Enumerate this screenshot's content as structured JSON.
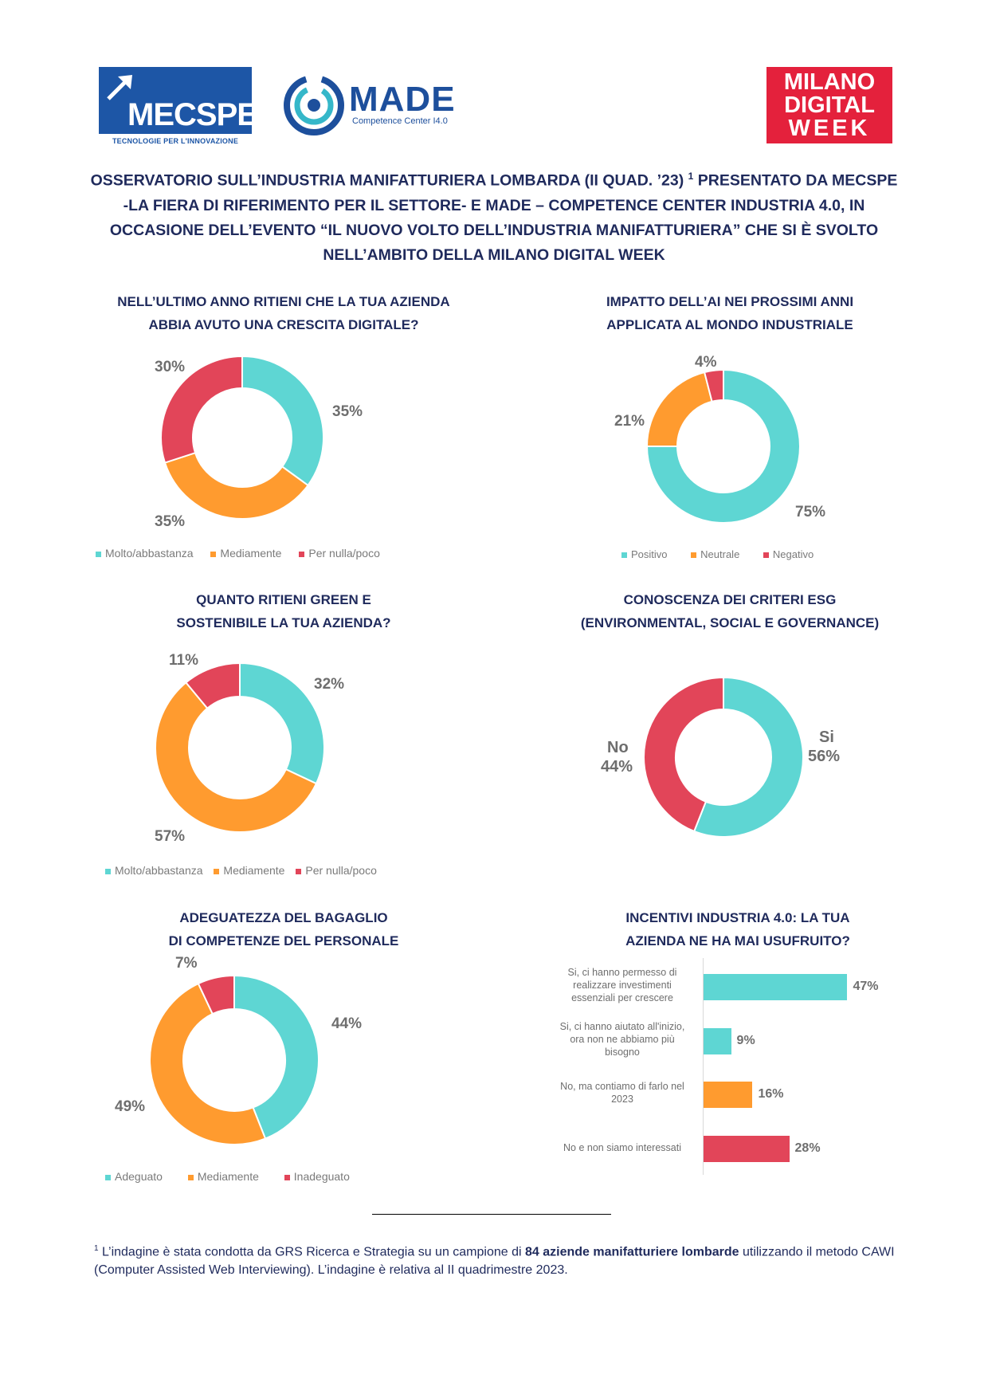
{
  "logos": {
    "mecspe": {
      "word": "MECSPE",
      "tagline": "TECNOLOGIE PER L'INNOVAZIONE"
    },
    "made": {
      "word": "MADE",
      "subtitle": "Competence Center I4.0"
    },
    "mdw": {
      "line1": "MILANO",
      "line2": "DIGITAL",
      "line3": "WEEK"
    }
  },
  "header": {
    "line1": "OSSERVATORIO SULL’INDUSTRIA MANIFATTURIERA LOMBARDA (II QUAD. ’23)",
    "sup": "1",
    "line1b": " PRESENTATO DA MECSPE",
    "line2": "-LA FIERA DI RIFERIMENTO PER IL SETTORE- E MADE – COMPETENCE CENTER INDUSTRIA 4.0, IN",
    "line3": "OCCASIONE DELL’EVENTO “IL NUOVO VOLTO DELL’INDUSTRIA MANIFATTURIERA” CHE SI È SVOLTO",
    "line4": "NELL’AMBITO DELLA MILANO DIGITAL WEEK"
  },
  "colors": {
    "teal": "#5ed6d3",
    "orange": "#ff9b2f",
    "red": "#e24559",
    "navy": "#1f2a5c",
    "grey": "#6e6e6e"
  },
  "chart_data": [
    {
      "type": "pie",
      "title_lines": [
        "NELL’ULTIMO ANNO RITIENI CHE LA TUA AZIENDA",
        "ABBIA AVUTO UNA CRESCITA DIGITALE?"
      ],
      "categories": [
        "Molto/abbastanza",
        "Mediamente",
        "Per nulla/poco"
      ],
      "values": [
        35,
        35,
        30
      ],
      "labels": [
        "35%",
        "35%",
        "30%"
      ],
      "legend": "bottom"
    },
    {
      "type": "pie",
      "title_lines": [
        "IMPATTO DELL’AI NEI PROSSIMI ANNI",
        "APPLICATA AL MONDO INDUSTRIALE"
      ],
      "categories": [
        "Positivo",
        "Neutrale",
        "Negativo"
      ],
      "values": [
        75,
        21,
        4
      ],
      "labels": [
        "75%",
        "21%",
        "4%"
      ],
      "legend": "bottom"
    },
    {
      "type": "pie",
      "title_lines": [
        "QUANTO RITIENI GREEN E",
        "SOSTENIBILE LA TUA AZIENDA?"
      ],
      "categories": [
        "Molto/abbastanza",
        "Mediamente",
        "Per nulla/poco"
      ],
      "values": [
        32,
        57,
        11
      ],
      "labels": [
        "32%",
        "57%",
        "11%"
      ],
      "legend": "bottom"
    },
    {
      "type": "pie",
      "title_lines": [
        "CONOSCENZA DEI CRITERI ESG",
        "(ENVIRONMENTAL, SOCIAL E GOVERNANCE)"
      ],
      "categories": [
        "Si",
        "No"
      ],
      "values": [
        56,
        44
      ],
      "labels": [
        "56%",
        "44%"
      ]
    },
    {
      "type": "pie",
      "title_lines": [
        "ADEGUATEZZA DEL BAGAGLIO",
        "DI COMPETENZE DEL PERSONALE"
      ],
      "categories": [
        "Adeguato",
        "Mediamente",
        "Inadeguato"
      ],
      "values": [
        44,
        49,
        7
      ],
      "labels": [
        "44%",
        "49%",
        "7%"
      ],
      "legend": "bottom"
    },
    {
      "type": "bar",
      "orientation": "horizontal",
      "title_lines": [
        "INCENTIVI INDUSTRIA 4.0: LA TUA",
        "AZIENDA NE HA MAI USUFRUITO?"
      ],
      "categories": [
        [
          "Si, ci hanno permesso di",
          "realizzare investimenti",
          "essenziali per crescere"
        ],
        [
          "Si, ci hanno aiutato all'inizio,",
          "ora non ne abbiamo più",
          "bisogno"
        ],
        [
          "No, ma contiamo di farlo nel",
          "2023"
        ],
        [
          "No e non siamo interessati"
        ]
      ],
      "values": [
        47,
        9,
        16,
        28
      ],
      "labels": [
        "47%",
        "9%",
        "16%",
        "28%"
      ],
      "xlim": [
        0,
        50
      ]
    }
  ],
  "footnote": {
    "sup": "1",
    "part1": " L’indagine è stata condotta da GRS Ricerca e Strategia su un campione di ",
    "bold": "84 aziende manifatturiere lombarde",
    "part2": " utilizzando il metodo CAWI (Computer Assisted Web Interviewing). L’indagine è relativa al II quadrimestre 2023."
  }
}
